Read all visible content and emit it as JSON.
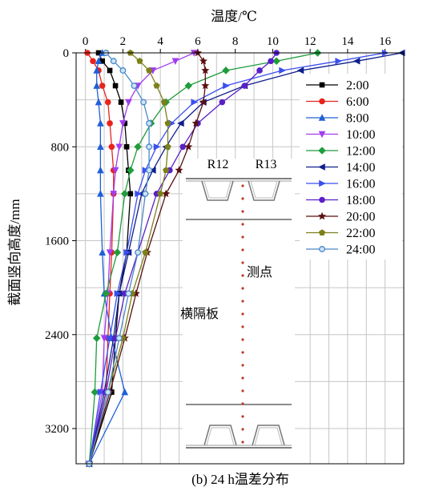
{
  "chart_data": {
    "type": "line",
    "caption": "(b) 24 h温差分布",
    "xlabel": "温度/℃",
    "ylabel": "截面竖向高度/mm",
    "xlim": [
      -0.5,
      17
    ],
    "ylim": [
      3500,
      0
    ],
    "y_inverted": true,
    "x_axis_position": "top",
    "grid": true,
    "legend_position": "right",
    "x_ticks": [
      0,
      2,
      4,
      6,
      8,
      10,
      12,
      14,
      16
    ],
    "y_ticks": [
      0,
      800,
      1600,
      2400,
      3200
    ],
    "y": [
      0,
      70,
      150,
      280,
      420,
      600,
      800,
      1000,
      1200,
      1700,
      2050,
      2430,
      2890,
      3500
    ],
    "series": [
      {
        "name": "2:00",
        "color": "#000000",
        "marker": "square",
        "values": [
          0.7,
          0.9,
          1.3,
          1.6,
          1.9,
          2.1,
          2.2,
          2.3,
          2.4,
          2.2,
          1.8,
          1.6,
          1.4,
          0.2
        ]
      },
      {
        "name": "6:00",
        "color": "#e8231c",
        "marker": "circle",
        "values": [
          0.1,
          0.4,
          0.7,
          0.9,
          1.2,
          1.3,
          1.4,
          1.5,
          1.5,
          1.4,
          1.3,
          1.2,
          1.1,
          0.2
        ]
      },
      {
        "name": "8:00",
        "color": "#1f5fd8",
        "marker": "triangle-up",
        "values": [
          0.9,
          0.7,
          0.6,
          0.6,
          0.7,
          0.8,
          0.8,
          0.8,
          0.8,
          0.9,
          1.0,
          1.4,
          2.1,
          0.2
        ]
      },
      {
        "name": "10:00",
        "color": "#a13cf0",
        "marker": "triangle-down",
        "values": [
          5.8,
          4.8,
          3.6,
          2.8,
          2.3,
          2.0,
          1.8,
          1.6,
          1.5,
          1.3,
          1.2,
          1.0,
          0.9,
          0.2
        ]
      },
      {
        "name": "12:00",
        "color": "#1f9c3c",
        "marker": "diamond",
        "values": [
          12.4,
          10.2,
          7.5,
          5.5,
          4.3,
          3.5,
          2.8,
          2.4,
          2.1,
          1.7,
          1.1,
          0.6,
          0.5,
          0.2
        ]
      },
      {
        "name": "14:00",
        "color": "#0f1f8c",
        "marker": "triangle-left",
        "values": [
          16.9,
          14.5,
          11.5,
          8.5,
          6.3,
          5.1,
          4.3,
          3.6,
          3.0,
          2.3,
          1.8,
          1.5,
          1.0,
          0.2
        ]
      },
      {
        "name": "16:00",
        "color": "#3a4ff0",
        "marker": "triangle-right",
        "values": [
          16.0,
          13.5,
          10.5,
          7.5,
          5.8,
          4.6,
          3.8,
          3.2,
          2.8,
          2.2,
          1.7,
          1.3,
          0.8,
          0.2
        ]
      },
      {
        "name": "18:00",
        "color": "#5a1fc7",
        "marker": "circle",
        "values": [
          10.2,
          9.9,
          9.3,
          8.5,
          7.3,
          6.0,
          5.2,
          4.5,
          3.8,
          2.8,
          2.1,
          1.6,
          1.1,
          0.2
        ]
      },
      {
        "name": "20:00",
        "color": "#5a1010",
        "marker": "star",
        "values": [
          6.0,
          6.3,
          6.4,
          6.4,
          6.3,
          5.9,
          5.5,
          5.0,
          4.3,
          3.3,
          2.7,
          2.1,
          1.3,
          0.2
        ]
      },
      {
        "name": "22:00",
        "color": "#7c8019",
        "marker": "pentagon",
        "values": [
          2.4,
          2.9,
          3.4,
          3.8,
          4.2,
          4.4,
          4.4,
          4.3,
          4.0,
          3.2,
          2.5,
          2.0,
          1.2,
          0.2
        ]
      },
      {
        "name": "24:00",
        "color": "#4a88c8",
        "marker": "circle-open",
        "values": [
          1.1,
          1.5,
          2.0,
          2.6,
          3.1,
          3.4,
          3.4,
          3.4,
          3.2,
          2.8,
          2.3,
          1.8,
          1.2,
          0.2
        ]
      }
    ],
    "annotations": {
      "r12": "R12",
      "r13": "R13",
      "measure_point": "测点",
      "diaphragm": "横隔板"
    }
  }
}
